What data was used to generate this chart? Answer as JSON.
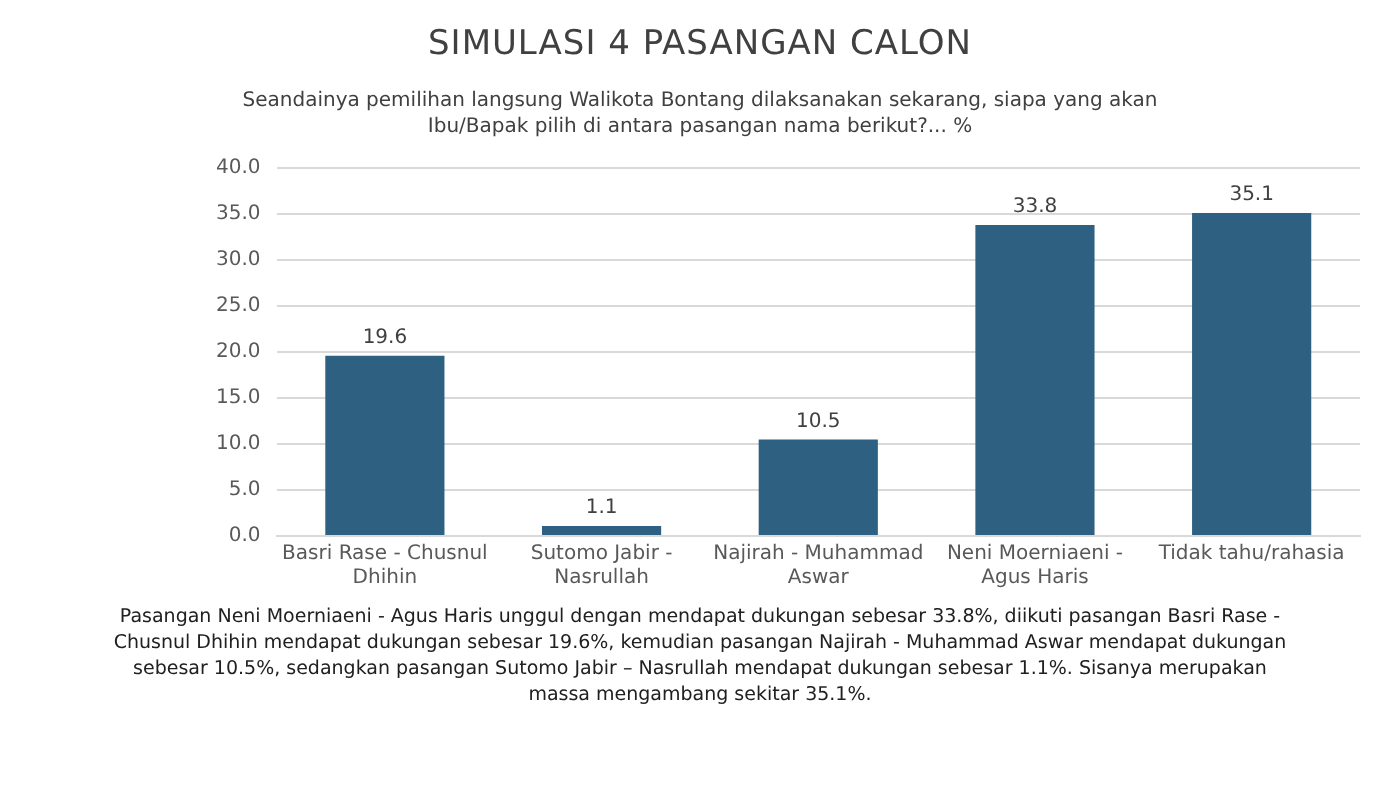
{
  "chart_data": {
    "type": "bar",
    "title": "SIMULASI 4 PASANGAN CALON",
    "subtitle": "Seandainya pemilihan langsung Walikota Bontang dilaksanakan sekarang, siapa yang akan Ibu/Bapak pilih di antara pasangan nama berikut?... %",
    "categories": [
      "Basri Rase - Chusnul Dhihin",
      "Sutomo Jabir - Nasrullah",
      "Najirah - Muhammad Aswar",
      "Neni Moerniaeni - Agus Haris",
      "Tidak tahu/rahasia"
    ],
    "values": [
      19.6,
      1.1,
      10.5,
      33.8,
      35.1
    ],
    "color": "#2e6181",
    "ylim": [
      0,
      40
    ],
    "yticks": [
      {
        "value": 0,
        "label": "0.0"
      },
      {
        "value": 5,
        "label": "5.0"
      },
      {
        "value": 10,
        "label": "10.0"
      },
      {
        "value": 15,
        "label": "15.0"
      },
      {
        "value": 20,
        "label": "20.0"
      },
      {
        "value": 25,
        "label": "25.0"
      },
      {
        "value": 30,
        "label": "30.0"
      },
      {
        "value": 35,
        "label": "35.0"
      },
      {
        "value": 40,
        "label": "40.0"
      }
    ],
    "grid": "y",
    "data_labels": true,
    "annotations": [
      "Pasangan Neni Moerniaeni - Agus Haris unggul dengan mendapat dukungan sebesar 33.8%, diikuti pasangan Basri Rase - Chusnul Dhihin mendapat dukungan sebesar 19.6%, kemudian pasangan Najirah - Muhammad Aswar mendapat dukungan sebesar 10.5%, sedangkan pasangan Sutomo Jabir – Nasrullah mendapat dukungan sebesar 1.1%. Sisanya merupakan massa mengambang sekitar 35.1%."
    ]
  }
}
